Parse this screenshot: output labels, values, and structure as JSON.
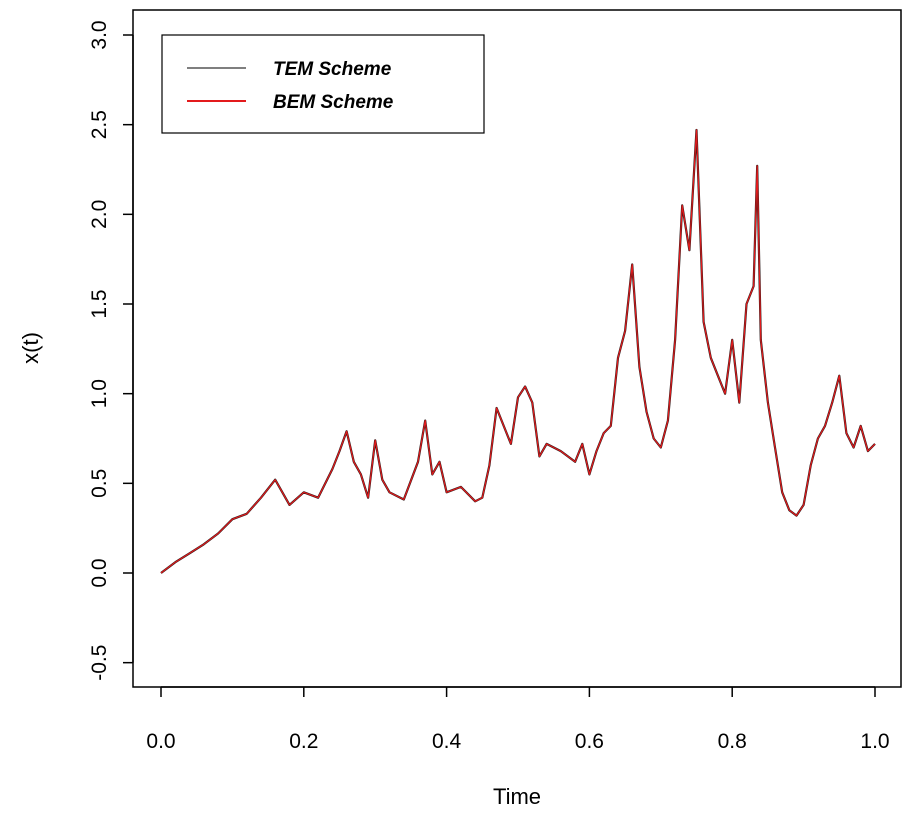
{
  "chart_data": {
    "type": "line",
    "xlabel": "Time",
    "ylabel": "x(t)",
    "xlim": [
      0.0,
      1.0
    ],
    "ylim": [
      -0.5,
      3.0
    ],
    "x_ticks": [
      "0.0",
      "0.2",
      "0.4",
      "0.6",
      "0.8",
      "1.0"
    ],
    "y_ticks": [
      "-0.5",
      "0.0",
      "0.5",
      "1.0",
      "1.5",
      "2.0",
      "2.5",
      "3.0"
    ],
    "grid": false,
    "legend_position": "top-left",
    "x": [
      0.0,
      0.02,
      0.04,
      0.06,
      0.08,
      0.1,
      0.12,
      0.14,
      0.16,
      0.18,
      0.2,
      0.22,
      0.24,
      0.25,
      0.26,
      0.27,
      0.28,
      0.29,
      0.3,
      0.31,
      0.32,
      0.34,
      0.36,
      0.37,
      0.38,
      0.39,
      0.4,
      0.42,
      0.44,
      0.45,
      0.46,
      0.47,
      0.48,
      0.49,
      0.5,
      0.51,
      0.52,
      0.53,
      0.54,
      0.56,
      0.58,
      0.59,
      0.6,
      0.61,
      0.62,
      0.63,
      0.64,
      0.65,
      0.66,
      0.67,
      0.68,
      0.69,
      0.7,
      0.71,
      0.72,
      0.73,
      0.74,
      0.75,
      0.76,
      0.77,
      0.78,
      0.79,
      0.8,
      0.81,
      0.82,
      0.83,
      0.835,
      0.84,
      0.85,
      0.86,
      0.87,
      0.88,
      0.89,
      0.9,
      0.91,
      0.92,
      0.93,
      0.94,
      0.95,
      0.96,
      0.97,
      0.98,
      0.99,
      1.0
    ],
    "series": [
      {
        "name": "TEM Scheme",
        "color": "#7f7f7f",
        "values": [
          0.0,
          0.06,
          0.11,
          0.16,
          0.22,
          0.3,
          0.33,
          0.42,
          0.52,
          0.38,
          0.45,
          0.42,
          0.58,
          0.68,
          0.79,
          0.62,
          0.55,
          0.42,
          0.74,
          0.52,
          0.45,
          0.41,
          0.62,
          0.85,
          0.55,
          0.62,
          0.45,
          0.48,
          0.4,
          0.42,
          0.6,
          0.92,
          0.82,
          0.72,
          0.98,
          1.04,
          0.95,
          0.65,
          0.72,
          0.68,
          0.62,
          0.72,
          0.55,
          0.68,
          0.78,
          0.82,
          1.2,
          1.35,
          1.72,
          1.15,
          0.9,
          0.75,
          0.7,
          0.85,
          1.3,
          2.05,
          1.8,
          2.47,
          1.4,
          1.2,
          1.1,
          1.0,
          1.3,
          0.95,
          1.5,
          1.6,
          2.27,
          1.3,
          0.95,
          0.7,
          0.45,
          0.35,
          0.32,
          0.38,
          0.6,
          0.75,
          0.82,
          0.95,
          1.1,
          0.78,
          0.7,
          0.82,
          0.68,
          0.72
        ]
      },
      {
        "name": "BEM Scheme",
        "color": "#e31a1c",
        "values": [
          0.0,
          0.06,
          0.11,
          0.16,
          0.22,
          0.3,
          0.33,
          0.42,
          0.52,
          0.38,
          0.45,
          0.42,
          0.58,
          0.68,
          0.79,
          0.62,
          0.55,
          0.42,
          0.74,
          0.52,
          0.45,
          0.41,
          0.62,
          0.85,
          0.55,
          0.62,
          0.45,
          0.48,
          0.4,
          0.42,
          0.6,
          0.92,
          0.82,
          0.72,
          0.98,
          1.04,
          0.95,
          0.65,
          0.72,
          0.68,
          0.62,
          0.72,
          0.55,
          0.68,
          0.78,
          0.82,
          1.2,
          1.35,
          1.72,
          1.15,
          0.9,
          0.75,
          0.7,
          0.85,
          1.3,
          2.05,
          1.8,
          2.47,
          1.4,
          1.2,
          1.1,
          1.0,
          1.3,
          0.95,
          1.5,
          1.6,
          2.27,
          1.3,
          0.95,
          0.7,
          0.45,
          0.35,
          0.32,
          0.38,
          0.6,
          0.75,
          0.82,
          0.95,
          1.1,
          0.78,
          0.7,
          0.82,
          0.68,
          0.72
        ]
      }
    ]
  },
  "legend": {
    "items": [
      {
        "label": "TEM Scheme",
        "color": "#7f7f7f"
      },
      {
        "label": "BEM Scheme",
        "color": "#e31a1c"
      }
    ]
  },
  "colors": {
    "frame": "#000000",
    "background": "#ffffff"
  }
}
